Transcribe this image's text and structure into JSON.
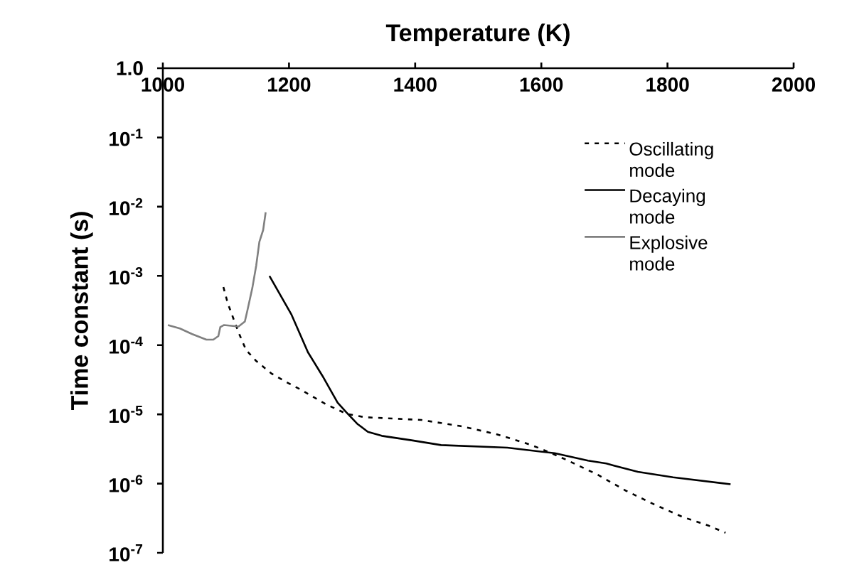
{
  "chart_data": {
    "type": "line",
    "xlabel": "Temperature (K)",
    "ylabel": "Time constant (s)",
    "log": "y",
    "xlim": [
      1000,
      2000
    ],
    "xticks": [
      1000,
      1200,
      1400,
      1600,
      1800,
      2000
    ],
    "ylim": [
      1e-07,
      1
    ],
    "yticks": [
      {
        "value": 1,
        "label": "1.0"
      },
      {
        "value": 0.1,
        "label": "10$^{-1}$"
      },
      {
        "value": 0.01,
        "label": "10$^{-2}$"
      },
      {
        "value": 0.001,
        "label": "10$^{-3}$"
      },
      {
        "value": 0.0001,
        "label": "10$^{-4}$"
      },
      {
        "value": 1e-05,
        "label": "10$^{-5}$"
      },
      {
        "value": 1e-06,
        "label": "10$^{-6}$"
      },
      {
        "value": 1e-07,
        "label": "10$^{-7}$"
      }
    ],
    "grid": false,
    "legend": "right",
    "marker": "none",
    "series": [
      {
        "name": "Oscillating mode",
        "color": "#000000",
        "line_style": "dashed",
        "x": [
          1096,
          1103,
          1112,
          1121,
          1132,
          1148,
          1172,
          1195,
          1218,
          1238,
          1258,
          1291,
          1320,
          1365,
          1410,
          1471,
          1528,
          1573,
          1599,
          1640,
          1689,
          1734,
          1779,
          1824,
          1866,
          1892
        ],
        "values": [
          0.00069,
          0.0004,
          0.00024,
          0.000145,
          8.5e-05,
          5.9e-05,
          3.9e-05,
          2.95e-05,
          2.3e-05,
          1.8e-05,
          1.41e-05,
          1.02e-05,
          9.1e-06,
          8.7e-06,
          8.3e-06,
          6.8e-06,
          5.2e-06,
          3.9e-06,
          3.2e-06,
          2.2e-06,
          1.35e-06,
          7.9e-07,
          5e-07,
          3.3e-07,
          2.45e-07,
          1.95e-07
        ]
      },
      {
        "name": "Decaying mode",
        "color": "#000000",
        "line_style": "solid",
        "x": [
          1169,
          1204,
          1230,
          1253,
          1277,
          1291,
          1309,
          1325,
          1347,
          1396,
          1441,
          1546,
          1621,
          1674,
          1703,
          1715,
          1753,
          1809,
          1900
        ],
        "values": [
          0.001,
          0.000275,
          7.9e-05,
          3.6e-05,
          1.48e-05,
          1.07e-05,
          7.2e-06,
          5.6e-06,
          4.9e-06,
          4.2e-06,
          3.6e-06,
          3.3e-06,
          2.75e-06,
          2.15e-06,
          1.95e-06,
          1.82e-06,
          1.48e-06,
          1.23e-06,
          9.8e-07
        ]
      },
      {
        "name": "Explosive mode",
        "color": "#808080",
        "line_style": "solid",
        "x": [
          1008,
          1027,
          1046,
          1069,
          1080,
          1088,
          1091,
          1097,
          1120,
          1130,
          1134,
          1142,
          1148,
          1153,
          1159,
          1163
        ],
        "values": [
          0.000195,
          0.000174,
          0.000145,
          0.00012,
          0.00012,
          0.000135,
          0.000182,
          0.000195,
          0.000186,
          0.000219,
          0.000316,
          0.00068,
          0.00141,
          0.0031,
          0.0046,
          0.0083
        ]
      }
    ]
  }
}
